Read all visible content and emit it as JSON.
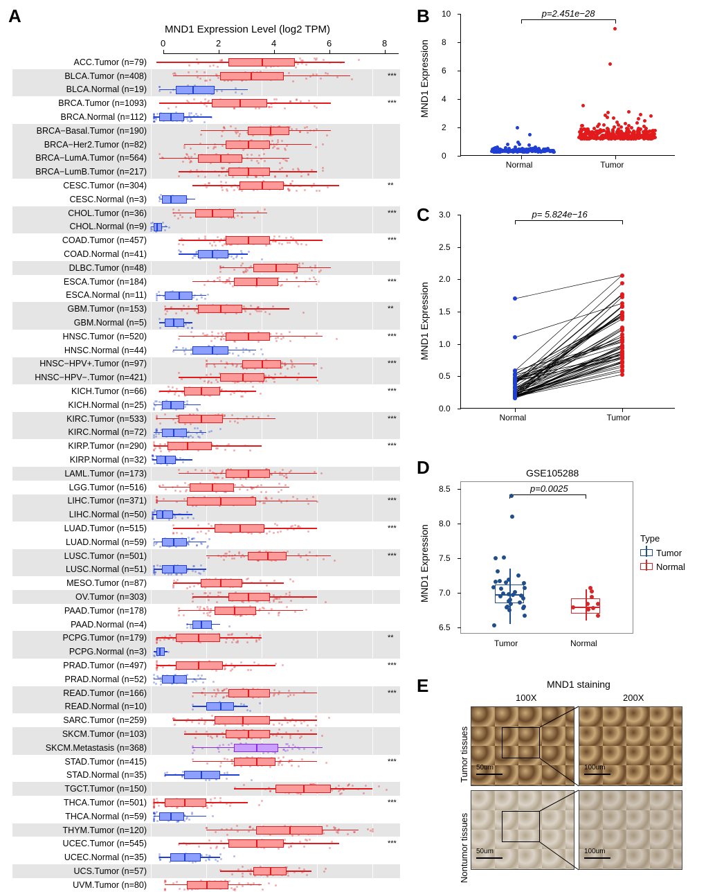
{
  "colors": {
    "tumor_red": "#e31a1c",
    "tumor_red_light": "#fb9a99",
    "normal_blue": "#1f3fd4",
    "normal_blue_light": "#8da0ff",
    "metastasis_purple": "#8a2be2",
    "tumor_d_blue": "#1f4e8c",
    "normal_d_red": "#d62728",
    "gray_bg": "#e5e5e5",
    "white_bg": "#ffffff",
    "ihc_brown_dark": "#6b4a2a",
    "ihc_brown_light": "#c9a878",
    "ihc_pale": "#dcd3c8"
  },
  "panelA": {
    "label": "A",
    "title": "MND1 Expression Level (log2 TPM)",
    "x_ticks": [
      0,
      2,
      4,
      6,
      8
    ],
    "x_min": 0,
    "x_max": 8.5,
    "rows": [
      {
        "label": "ACC.Tumor (n=79)",
        "type": "tumor",
        "median": 4.0,
        "q1": 2.8,
        "q3": 5.2,
        "wmin": 0.2,
        "wmax": 7.0,
        "sig": "",
        "bg": "w"
      },
      {
        "label": "BLCA.Tumor (n=408)",
        "type": "tumor",
        "median": 3.6,
        "q1": 2.5,
        "q3": 4.8,
        "wmin": 0.8,
        "wmax": 7.2,
        "sig": "***",
        "bg": "g"
      },
      {
        "label": "BLCA.Normal (n=19)",
        "type": "normal",
        "median": 1.5,
        "q1": 0.9,
        "q3": 2.3,
        "wmin": 0.3,
        "wmax": 3.5,
        "sig": "",
        "bg": "g"
      },
      {
        "label": "BRCA.Tumor (n=1093)",
        "type": "tumor",
        "median": 3.2,
        "q1": 2.2,
        "q3": 4.2,
        "wmin": 0.3,
        "wmax": 6.5,
        "sig": "***",
        "bg": "w"
      },
      {
        "label": "BRCA.Normal (n=112)",
        "type": "normal",
        "median": 0.7,
        "q1": 0.3,
        "q3": 1.2,
        "wmin": 0.1,
        "wmax": 2.2,
        "sig": "",
        "bg": "w"
      },
      {
        "label": "BRCA−Basal.Tumor (n=190)",
        "type": "tumor",
        "median": 4.3,
        "q1": 3.5,
        "q3": 5.0,
        "wmin": 1.8,
        "wmax": 6.5,
        "sig": "",
        "bg": "g"
      },
      {
        "label": "BRCA−Her2.Tumor (n=82)",
        "type": "tumor",
        "median": 3.5,
        "q1": 2.7,
        "q3": 4.3,
        "wmin": 1.2,
        "wmax": 5.8,
        "sig": "",
        "bg": "g"
      },
      {
        "label": "BRCA−LumA.Tumor (n=564)",
        "type": "tumor",
        "median": 2.5,
        "q1": 1.7,
        "q3": 3.3,
        "wmin": 0.3,
        "wmax": 5.0,
        "sig": "",
        "bg": "g"
      },
      {
        "label": "BRCA−LumB.Tumor (n=217)",
        "type": "tumor",
        "median": 3.5,
        "q1": 2.8,
        "q3": 4.3,
        "wmin": 1.0,
        "wmax": 6.0,
        "sig": "",
        "bg": "g"
      },
      {
        "label": "CESC.Tumor (n=304)",
        "type": "tumor",
        "median": 4.0,
        "q1": 3.2,
        "q3": 4.8,
        "wmin": 1.5,
        "wmax": 6.8,
        "sig": "**",
        "bg": "w"
      },
      {
        "label": "CESC.Normal (n=3)",
        "type": "normal",
        "median": 0.7,
        "q1": 0.4,
        "q3": 1.3,
        "wmin": 0.3,
        "wmax": 1.6,
        "sig": "",
        "bg": "w"
      },
      {
        "label": "CHOL.Tumor (n=36)",
        "type": "tumor",
        "median": 2.2,
        "q1": 1.6,
        "q3": 3.0,
        "wmin": 0.8,
        "wmax": 4.2,
        "sig": "***",
        "bg": "g"
      },
      {
        "label": "CHOL.Normal (n=9)",
        "type": "normal",
        "median": 0.2,
        "q1": 0.1,
        "q3": 0.4,
        "wmin": 0,
        "wmax": 0.6,
        "sig": "",
        "bg": "g"
      },
      {
        "label": "COAD.Tumor (n=457)",
        "type": "tumor",
        "median": 3.5,
        "q1": 2.7,
        "q3": 4.3,
        "wmin": 1.0,
        "wmax": 6.2,
        "sig": "***",
        "bg": "w"
      },
      {
        "label": "COAD.Normal (n=41)",
        "type": "normal",
        "median": 2.2,
        "q1": 1.7,
        "q3": 2.8,
        "wmin": 1.0,
        "wmax": 3.5,
        "sig": "",
        "bg": "w"
      },
      {
        "label": "DLBC.Tumor (n=48)",
        "type": "tumor",
        "median": 4.5,
        "q1": 3.7,
        "q3": 5.3,
        "wmin": 2.5,
        "wmax": 6.5,
        "sig": "",
        "bg": "g"
      },
      {
        "label": "ESCA.Tumor (n=184)",
        "type": "tumor",
        "median": 3.8,
        "q1": 3.0,
        "q3": 4.6,
        "wmin": 1.5,
        "wmax": 6.0,
        "sig": "***",
        "bg": "w"
      },
      {
        "label": "ESCA.Normal (n=11)",
        "type": "normal",
        "median": 1.0,
        "q1": 0.5,
        "q3": 1.5,
        "wmin": 0.2,
        "wmax": 2.0,
        "sig": "",
        "bg": "w"
      },
      {
        "label": "GBM.Tumor (n=153)",
        "type": "tumor",
        "median": 2.5,
        "q1": 1.7,
        "q3": 3.3,
        "wmin": 0.5,
        "wmax": 5.0,
        "sig": "**",
        "bg": "g"
      },
      {
        "label": "GBM.Normal (n=5)",
        "type": "normal",
        "median": 0.8,
        "q1": 0.5,
        "q3": 1.2,
        "wmin": 0.3,
        "wmax": 1.5,
        "sig": "",
        "bg": "g"
      },
      {
        "label": "HNSC.Tumor (n=520)",
        "type": "tumor",
        "median": 3.5,
        "q1": 2.7,
        "q3": 4.3,
        "wmin": 1.0,
        "wmax": 6.2,
        "sig": "***",
        "bg": "w"
      },
      {
        "label": "HNSC.Normal (n=44)",
        "type": "normal",
        "median": 2.2,
        "q1": 1.5,
        "q3": 2.8,
        "wmin": 0.8,
        "wmax": 3.8,
        "sig": "",
        "bg": "w"
      },
      {
        "label": "HNSC−HPV+.Tumor (n=97)",
        "type": "tumor",
        "median": 4.0,
        "q1": 3.3,
        "q3": 4.7,
        "wmin": 2.0,
        "wmax": 6.0,
        "sig": "***",
        "bg": "g"
      },
      {
        "label": "HNSC−HPV−.Tumor (n=421)",
        "type": "tumor",
        "median": 3.3,
        "q1": 2.5,
        "q3": 4.1,
        "wmin": 1.0,
        "wmax": 6.0,
        "sig": "",
        "bg": "g"
      },
      {
        "label": "KICH.Tumor (n=66)",
        "type": "tumor",
        "median": 1.8,
        "q1": 1.2,
        "q3": 2.5,
        "wmin": 0.3,
        "wmax": 3.8,
        "sig": "***",
        "bg": "w"
      },
      {
        "label": "KICH.Normal (n=25)",
        "type": "normal",
        "median": 0.7,
        "q1": 0.4,
        "q3": 1.2,
        "wmin": 0.1,
        "wmax": 1.8,
        "sig": "",
        "bg": "w"
      },
      {
        "label": "KIRC.Tumor (n=533)",
        "type": "tumor",
        "median": 1.8,
        "q1": 1.0,
        "q3": 2.6,
        "wmin": 0.2,
        "wmax": 4.5,
        "sig": "***",
        "bg": "g"
      },
      {
        "label": "KIRC.Normal (n=72)",
        "type": "normal",
        "median": 0.8,
        "q1": 0.4,
        "q3": 1.3,
        "wmin": 0.1,
        "wmax": 2.0,
        "sig": "",
        "bg": "g"
      },
      {
        "label": "KIRP.Tumor (n=290)",
        "type": "tumor",
        "median": 1.3,
        "q1": 0.6,
        "q3": 2.2,
        "wmin": 0.1,
        "wmax": 4.0,
        "sig": "***",
        "bg": "w"
      },
      {
        "label": "KIRP.Normal (n=32)",
        "type": "normal",
        "median": 0.5,
        "q1": 0.2,
        "q3": 0.9,
        "wmin": 0.05,
        "wmax": 1.5,
        "sig": "",
        "bg": "w"
      },
      {
        "label": "LAML.Tumor (n=173)",
        "type": "tumor",
        "median": 3.5,
        "q1": 2.7,
        "q3": 4.3,
        "wmin": 1.0,
        "wmax": 6.0,
        "sig": "",
        "bg": "g"
      },
      {
        "label": "LGG.Tumor (n=516)",
        "type": "tumor",
        "median": 2.2,
        "q1": 1.4,
        "q3": 3.0,
        "wmin": 0.3,
        "wmax": 5.0,
        "sig": "",
        "bg": "w"
      },
      {
        "label": "LIHC.Tumor (n=371)",
        "type": "tumor",
        "median": 2.5,
        "q1": 1.3,
        "q3": 3.8,
        "wmin": 0.2,
        "wmax": 6.0,
        "sig": "***",
        "bg": "g"
      },
      {
        "label": "LIHC.Normal (n=50)",
        "type": "normal",
        "median": 0.4,
        "q1": 0.2,
        "q3": 0.8,
        "wmin": 0.05,
        "wmax": 1.5,
        "sig": "",
        "bg": "g"
      },
      {
        "label": "LUAD.Tumor (n=515)",
        "type": "tumor",
        "median": 3.2,
        "q1": 2.3,
        "q3": 4.1,
        "wmin": 0.8,
        "wmax": 6.0,
        "sig": "***",
        "bg": "w"
      },
      {
        "label": "LUAD.Normal (n=59)",
        "type": "normal",
        "median": 0.8,
        "q1": 0.4,
        "q3": 1.3,
        "wmin": 0.1,
        "wmax": 2.0,
        "sig": "",
        "bg": "w"
      },
      {
        "label": "LUSC.Tumor (n=501)",
        "type": "tumor",
        "median": 4.2,
        "q1": 3.5,
        "q3": 4.9,
        "wmin": 2.0,
        "wmax": 6.5,
        "sig": "***",
        "bg": "g"
      },
      {
        "label": "LUSC.Normal (n=51)",
        "type": "normal",
        "median": 0.8,
        "q1": 0.4,
        "q3": 1.3,
        "wmin": 0.1,
        "wmax": 2.0,
        "sig": "",
        "bg": "g"
      },
      {
        "label": "MESO.Tumor (n=87)",
        "type": "tumor",
        "median": 2.5,
        "q1": 1.8,
        "q3": 3.3,
        "wmin": 0.8,
        "wmax": 4.8,
        "sig": "",
        "bg": "w"
      },
      {
        "label": "OV.Tumor (n=303)",
        "type": "tumor",
        "median": 3.5,
        "q1": 2.8,
        "q3": 4.3,
        "wmin": 1.5,
        "wmax": 6.0,
        "sig": "",
        "bg": "g"
      },
      {
        "label": "PAAD.Tumor (n=178)",
        "type": "tumor",
        "median": 3.0,
        "q1": 2.3,
        "q3": 3.8,
        "wmin": 1.0,
        "wmax": 5.5,
        "sig": "",
        "bg": "w"
      },
      {
        "label": "PAAD.Normal (n=4)",
        "type": "normal",
        "median": 1.8,
        "q1": 1.5,
        "q3": 2.2,
        "wmin": 1.3,
        "wmax": 2.5,
        "sig": "",
        "bg": "w"
      },
      {
        "label": "PCPG.Tumor (n=179)",
        "type": "tumor",
        "median": 1.7,
        "q1": 0.9,
        "q3": 2.5,
        "wmin": 0.2,
        "wmax": 4.0,
        "sig": "**",
        "bg": "g"
      },
      {
        "label": "PCPG.Normal (n=3)",
        "type": "normal",
        "median": 0.3,
        "q1": 0.2,
        "q3": 0.5,
        "wmin": 0.1,
        "wmax": 0.6,
        "sig": "",
        "bg": "g"
      },
      {
        "label": "PRAD.Tumor (n=497)",
        "type": "tumor",
        "median": 1.7,
        "q1": 0.9,
        "q3": 2.6,
        "wmin": 0.2,
        "wmax": 4.5,
        "sig": "***",
        "bg": "w"
      },
      {
        "label": "PRAD.Normal (n=52)",
        "type": "normal",
        "median": 0.8,
        "q1": 0.4,
        "q3": 1.3,
        "wmin": 0.1,
        "wmax": 2.0,
        "sig": "",
        "bg": "w"
      },
      {
        "label": "READ.Tumor (n=166)",
        "type": "tumor",
        "median": 3.5,
        "q1": 2.8,
        "q3": 4.3,
        "wmin": 1.5,
        "wmax": 6.0,
        "sig": "***",
        "bg": "g"
      },
      {
        "label": "READ.Normal (n=10)",
        "type": "normal",
        "median": 2.5,
        "q1": 2.0,
        "q3": 3.0,
        "wmin": 1.5,
        "wmax": 3.5,
        "sig": "",
        "bg": "g"
      },
      {
        "label": "SARC.Tumor (n=259)",
        "type": "tumor",
        "median": 3.3,
        "q1": 2.3,
        "q3": 4.3,
        "wmin": 0.8,
        "wmax": 6.0,
        "sig": "",
        "bg": "w"
      },
      {
        "label": "SKCM.Tumor (n=103)",
        "type": "tumor",
        "median": 3.5,
        "q1": 2.7,
        "q3": 4.3,
        "wmin": 1.2,
        "wmax": 6.0,
        "sig": "",
        "bg": "g"
      },
      {
        "label": "SKCM.Metastasis (n=368)",
        "type": "metastasis",
        "median": 3.8,
        "q1": 3.0,
        "q3": 4.6,
        "wmin": 1.5,
        "wmax": 6.2,
        "sig": "",
        "bg": "g"
      },
      {
        "label": "STAD.Tumor (n=415)",
        "type": "tumor",
        "median": 3.8,
        "q1": 3.0,
        "q3": 4.5,
        "wmin": 1.5,
        "wmax": 6.0,
        "sig": "***",
        "bg": "w"
      },
      {
        "label": "STAD.Normal (n=35)",
        "type": "normal",
        "median": 1.8,
        "q1": 1.2,
        "q3": 2.5,
        "wmin": 0.5,
        "wmax": 3.2,
        "sig": "",
        "bg": "w"
      },
      {
        "label": "TGCT.Tumor (n=150)",
        "type": "tumor",
        "median": 5.5,
        "q1": 4.5,
        "q3": 6.5,
        "wmin": 3.0,
        "wmax": 8.0,
        "sig": "",
        "bg": "g"
      },
      {
        "label": "THCA.Tumor (n=501)",
        "type": "tumor",
        "median": 1.2,
        "q1": 0.5,
        "q3": 2.0,
        "wmin": 0.1,
        "wmax": 3.5,
        "sig": "***",
        "bg": "w"
      },
      {
        "label": "THCA.Normal (n=59)",
        "type": "normal",
        "median": 0.7,
        "q1": 0.3,
        "q3": 1.2,
        "wmin": 0.1,
        "wmax": 2.0,
        "sig": "",
        "bg": "w"
      },
      {
        "label": "THYM.Tumor (n=120)",
        "type": "tumor",
        "median": 5.0,
        "q1": 3.8,
        "q3": 6.2,
        "wmin": 2.0,
        "wmax": 7.5,
        "sig": "",
        "bg": "g"
      },
      {
        "label": "UCEC.Tumor (n=545)",
        "type": "tumor",
        "median": 3.8,
        "q1": 2.8,
        "q3": 4.8,
        "wmin": 1.0,
        "wmax": 6.8,
        "sig": "***",
        "bg": "w"
      },
      {
        "label": "UCEC.Normal (n=35)",
        "type": "normal",
        "median": 1.2,
        "q1": 0.7,
        "q3": 1.8,
        "wmin": 0.3,
        "wmax": 2.5,
        "sig": "",
        "bg": "w"
      },
      {
        "label": "UCS.Tumor (n=57)",
        "type": "tumor",
        "median": 4.3,
        "q1": 3.7,
        "q3": 4.9,
        "wmin": 2.5,
        "wmax": 5.8,
        "sig": "",
        "bg": "g"
      },
      {
        "label": "UVM.Tumor (n=80)",
        "type": "tumor",
        "median": 2.0,
        "q1": 1.3,
        "q3": 2.8,
        "wmin": 0.5,
        "wmax": 4.0,
        "sig": "",
        "bg": "w"
      }
    ]
  },
  "panelB": {
    "label": "B",
    "ylabel": "MND1 Expression",
    "p_text": "p=2.451e−28",
    "y_ticks": [
      0,
      2,
      4,
      6,
      8,
      10
    ],
    "y_min": 0,
    "y_max": 10,
    "x_categories": [
      "Normal",
      "Tumor"
    ],
    "normal_points": 160,
    "tumor_points": 320,
    "normal_mean": 0.3,
    "normal_sd": 0.2,
    "tumor_mean": 1.2,
    "tumor_sd": 0.7,
    "tumor_outliers": [
      6.5,
      9.0
    ],
    "normal_outliers": [
      1.5,
      2.0
    ]
  },
  "panelC": {
    "label": "C",
    "ylabel": "MND1 Expression",
    "p_text": "p= 5.824e−16",
    "y_ticks": [
      0,
      0.5,
      1.0,
      1.5,
      2.0,
      2.5,
      3.0
    ],
    "y_min": 0,
    "y_max": 3.0,
    "x_categories": [
      "Normal",
      "Tumor"
    ],
    "n_pairs": 60
  },
  "panelD": {
    "label": "D",
    "title": "GSE105288",
    "ylabel": "MND1 Expression",
    "p_text": "p=0.0025",
    "y_ticks": [
      6.5,
      7.0,
      7.5,
      8.0,
      8.5
    ],
    "y_min": 6.4,
    "y_max": 8.6,
    "x_categories": [
      "Tumor",
      "Normal"
    ],
    "legend_title": "Type",
    "legend_items": [
      "Tumor",
      "Normal"
    ],
    "tumor_box": {
      "q1": 6.85,
      "median": 6.98,
      "q3": 7.12,
      "wmin": 6.55,
      "wmax": 7.35
    },
    "normal_box": {
      "q1": 6.7,
      "median": 6.8,
      "q3": 6.92,
      "wmin": 6.6,
      "wmax": 7.05
    },
    "tumor_outliers": [
      8.1,
      8.4
    ],
    "tumor_n_points": 30,
    "normal_n_points": 9
  },
  "panelE": {
    "label": "E",
    "title": "MND1 staining",
    "col_labels": [
      "100X",
      "200X"
    ],
    "row_labels": [
      "Tumor tissues",
      "Nontumor tissues"
    ],
    "scales": [
      "50um",
      "100um"
    ]
  }
}
